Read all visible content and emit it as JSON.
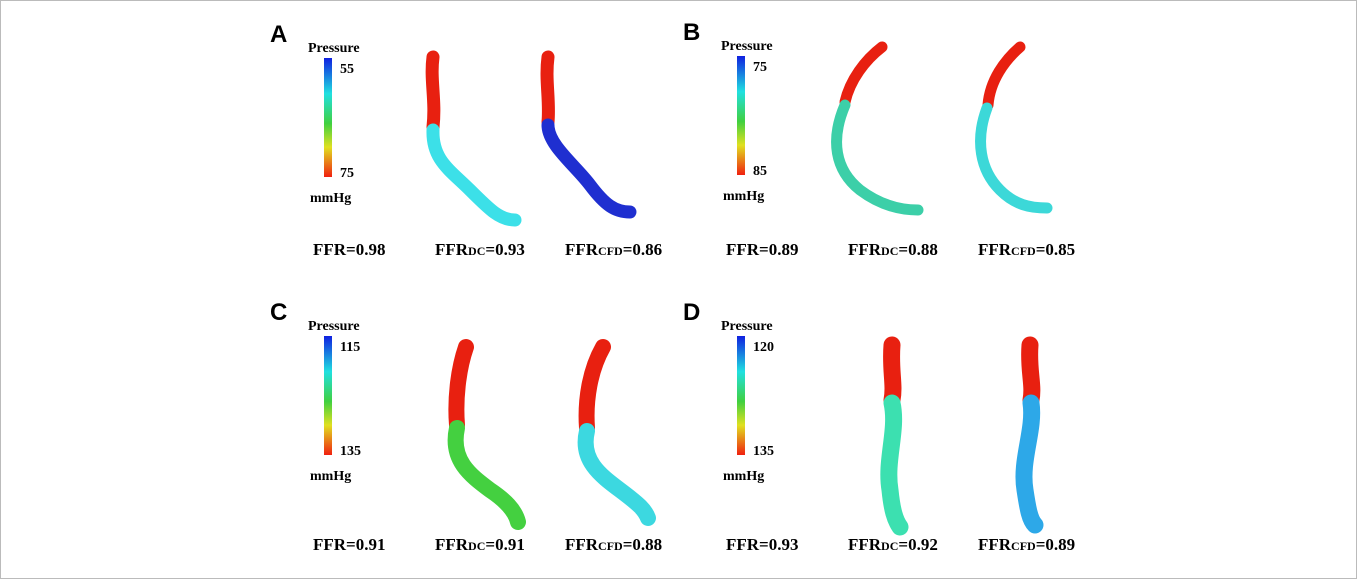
{
  "panels": [
    {
      "label": "A",
      "colorbar": {
        "title": "Pressure",
        "top": 55,
        "bottom": 75,
        "unit": "mmHg"
      },
      "ffr": [
        {
          "name": "FFR",
          "value": "=0.98"
        },
        {
          "name": "FFR",
          "sub": "DC",
          "value": "=0.93"
        },
        {
          "name": "FFR",
          "sub": "CFD",
          "value": "=0.86"
        }
      ]
    },
    {
      "label": "B",
      "colorbar": {
        "title": "Pressure",
        "top": 75,
        "bottom": 85,
        "unit": "mmHg"
      },
      "ffr": [
        {
          "name": "FFR",
          "value": "=0.89"
        },
        {
          "name": "FFR",
          "sub": "DC",
          "value": "=0.88"
        },
        {
          "name": "FFR",
          "sub": "CFD",
          "value": "=0.85"
        }
      ]
    },
    {
      "label": "C",
      "colorbar": {
        "title": "Pressure",
        "top": 115,
        "bottom": 135,
        "unit": "mmHg"
      },
      "ffr": [
        {
          "name": "FFR",
          "value": "=0.91"
        },
        {
          "name": "FFR",
          "sub": "DC",
          "value": "=0.91"
        },
        {
          "name": "FFR",
          "sub": "CFD",
          "value": "=0.88"
        }
      ]
    },
    {
      "label": "D",
      "colorbar": {
        "title": "Pressure",
        "top": 120,
        "bottom": 135,
        "unit": "mmHg"
      },
      "ffr": [
        {
          "name": "FFR",
          "value": "=0.93"
        },
        {
          "name": "FFR",
          "sub": "DC",
          "value": "=0.92"
        },
        {
          "name": "FFR",
          "sub": "CFD",
          "value": "=0.89"
        }
      ]
    }
  ]
}
